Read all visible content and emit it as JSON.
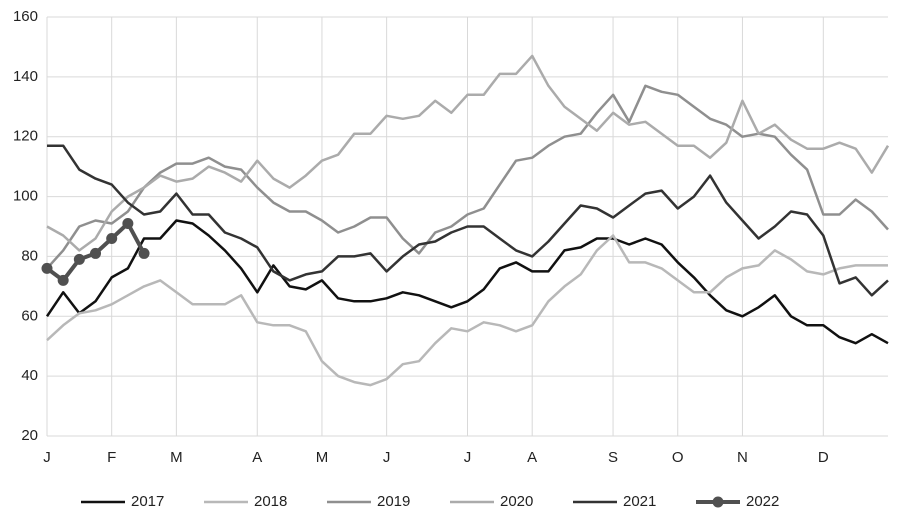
{
  "chart_data": {
    "type": "line",
    "categories": [
      "J",
      null,
      null,
      null,
      "F",
      null,
      null,
      null,
      "M",
      null,
      null,
      null,
      null,
      "A",
      null,
      null,
      null,
      "M",
      null,
      null,
      null,
      "J",
      null,
      null,
      null,
      null,
      "J",
      null,
      null,
      null,
      "A",
      null,
      null,
      null,
      null,
      "S",
      null,
      null,
      null,
      "O",
      null,
      null,
      null,
      "N",
      null,
      null,
      null,
      null,
      "D",
      null,
      null,
      null,
      null
    ],
    "series": [
      {
        "name": "2017",
        "color": "#111111",
        "values": [
          60,
          68,
          61,
          65,
          73,
          76,
          86,
          86,
          92,
          91,
          87,
          82,
          76,
          68,
          77,
          70,
          69,
          72,
          66,
          65,
          65,
          66,
          68,
          67,
          65,
          63,
          65,
          69,
          76,
          78,
          75,
          75,
          82,
          83,
          86,
          86,
          84,
          86,
          84,
          78,
          73,
          67,
          62,
          60,
          63,
          67,
          60,
          57,
          57,
          53,
          51,
          54,
          51
        ]
      },
      {
        "name": "2018",
        "color": "#b8b8b8",
        "values": [
          52,
          57,
          61,
          62,
          64,
          67,
          70,
          72,
          68,
          64,
          64,
          64,
          67,
          58,
          57,
          57,
          55,
          45,
          40,
          38,
          37,
          39,
          44,
          45,
          51,
          56,
          55,
          58,
          57,
          55,
          57,
          65,
          70,
          74,
          82,
          87,
          78,
          78,
          76,
          72,
          68,
          68,
          73,
          76,
          77,
          82,
          79,
          75,
          74,
          76,
          77,
          77,
          77
        ]
      },
      {
        "name": "2019",
        "color": "#8f8f8f",
        "values": [
          76,
          82,
          90,
          92,
          91,
          95,
          103,
          108,
          111,
          111,
          113,
          110,
          109,
          103,
          98,
          95,
          95,
          92,
          88,
          90,
          93,
          93,
          86,
          81,
          88,
          90,
          94,
          96,
          104,
          112,
          113,
          117,
          120,
          121,
          128,
          134,
          125,
          137,
          135,
          134,
          130,
          126,
          124,
          120,
          121,
          120,
          114,
          109,
          94,
          94,
          99,
          95,
          89
        ]
      },
      {
        "name": "2020",
        "color": "#ababab",
        "values": [
          90,
          87,
          82,
          86,
          95,
          100,
          103,
          107,
          105,
          106,
          110,
          108,
          105,
          112,
          106,
          103,
          107,
          112,
          114,
          121,
          121,
          127,
          126,
          127,
          132,
          128,
          134,
          134,
          141,
          141,
          147,
          137,
          130,
          126,
          122,
          128,
          124,
          125,
          121,
          117,
          117,
          113,
          118,
          132,
          121,
          124,
          119,
          116,
          116,
          118,
          116,
          108,
          117
        ]
      },
      {
        "name": "2021",
        "color": "#333333",
        "values": [
          117,
          117,
          109,
          106,
          104,
          98,
          94,
          95,
          101,
          94,
          94,
          88,
          86,
          83,
          75,
          72,
          74,
          75,
          80,
          80,
          81,
          75,
          80,
          84,
          85,
          88,
          90,
          90,
          86,
          82,
          80,
          85,
          91,
          97,
          96,
          93,
          97,
          101,
          102,
          96,
          100,
          107,
          98,
          92,
          86,
          90,
          95,
          94,
          87,
          71,
          73,
          67,
          72
        ]
      },
      {
        "name": "2022",
        "color": "#505050",
        "markers": true,
        "values": [
          76,
          72,
          79,
          81,
          86,
          91,
          81,
          null,
          null,
          null,
          null,
          null,
          null,
          null,
          null,
          null,
          null,
          null,
          null,
          null,
          null,
          null,
          null,
          null,
          null,
          null,
          null,
          null,
          null,
          null,
          null,
          null,
          null,
          null,
          null,
          null,
          null,
          null,
          null,
          null,
          null,
          null,
          null,
          null,
          null,
          null,
          null,
          null,
          null,
          null,
          null,
          null,
          null
        ]
      }
    ],
    "ylim": [
      20,
      160
    ],
    "yticks": [
      20,
      40,
      60,
      80,
      100,
      120,
      140,
      160
    ],
    "grid": true,
    "legend": "bottom"
  }
}
